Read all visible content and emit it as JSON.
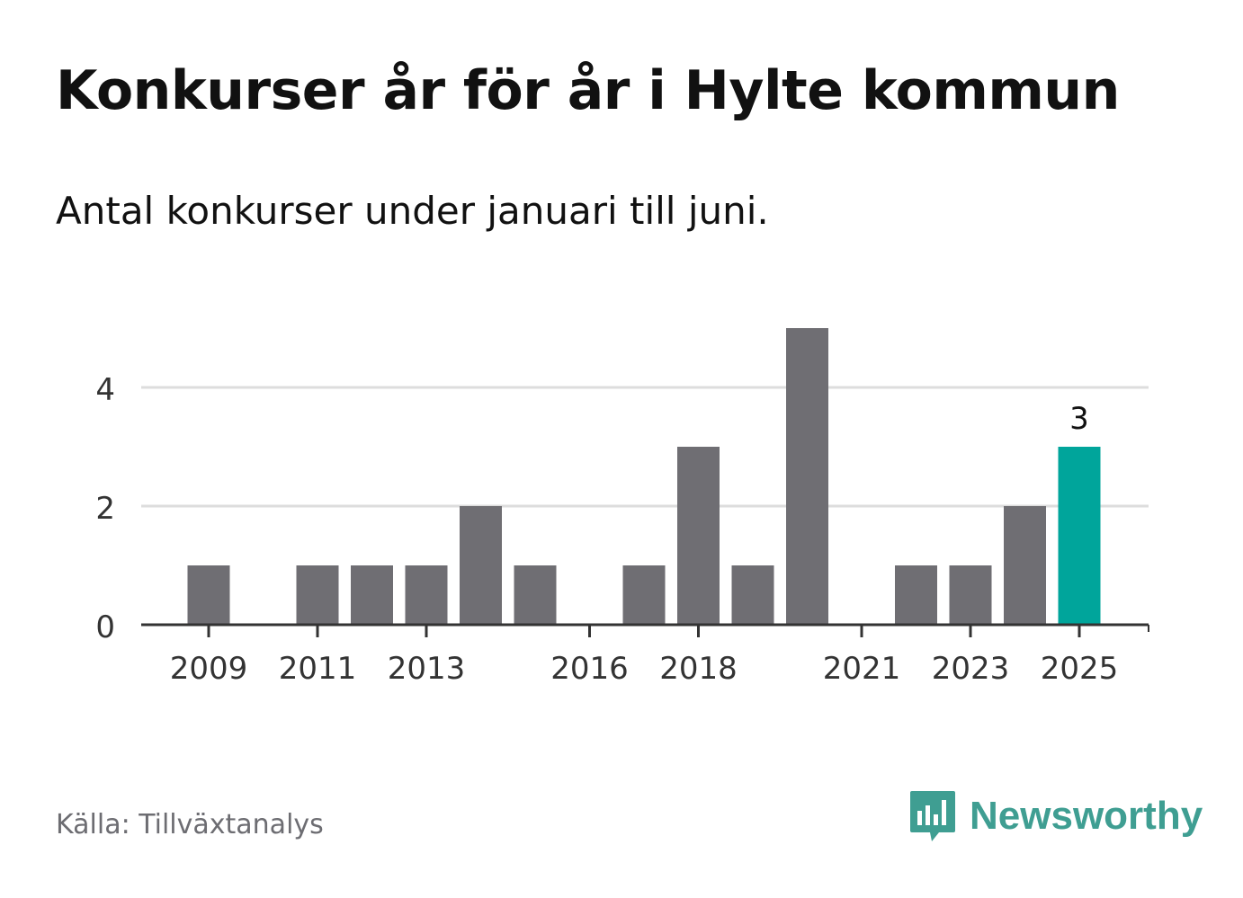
{
  "header": {
    "title": "Konkurser år för år i Hylte kommun",
    "subtitle": "Antal konkurser under januari till juni."
  },
  "footer": {
    "source": "Källa: Tillväxtanalys",
    "brand": "Newsworthy"
  },
  "colors": {
    "bar": "#6f6e73",
    "highlight": "#00a59b",
    "grid": "#dddddd",
    "axis": "#333333",
    "brand": "#3f9e92"
  },
  "icons": {
    "brand_logo": "bar-chart-speech-bubble-icon"
  },
  "chart_data": {
    "type": "bar",
    "categories": [
      "2009",
      "2010",
      "2011",
      "2012",
      "2013",
      "2014",
      "2015",
      "2016",
      "2017",
      "2018",
      "2019",
      "2020",
      "2021",
      "2022",
      "2023",
      "2024",
      "2025"
    ],
    "values": [
      1,
      0,
      1,
      1,
      1,
      2,
      1,
      0,
      1,
      3,
      1,
      5,
      0,
      1,
      1,
      2,
      3
    ],
    "x_tick_labels": [
      "2009",
      "2011",
      "2013",
      "2016",
      "2018",
      "2021",
      "2023",
      "2025"
    ],
    "y_ticks": [
      0,
      2,
      4
    ],
    "ylim": [
      0,
      5
    ],
    "highlight_category": "2025",
    "highlight_label": "3",
    "grid": true,
    "legend": "none",
    "xlabel": "",
    "ylabel": ""
  }
}
